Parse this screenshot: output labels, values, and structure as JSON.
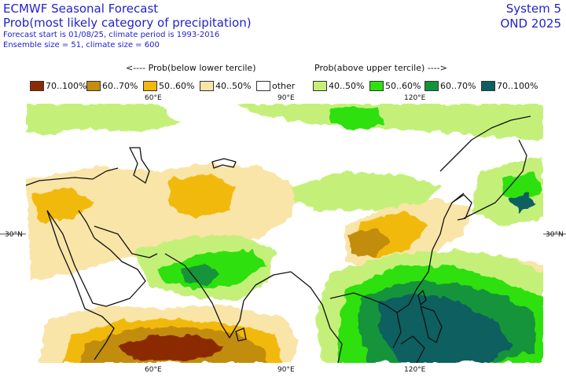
{
  "header": {
    "title": "ECMWF Seasonal Forecast",
    "subtitle": "Prob(most likely category of precipitation)",
    "info_line1": "Forecast start is 01/08/25, climate period is 1993-2016",
    "info_line2": "Ensemble size = 51, climate size = 600",
    "system": "System 5",
    "season": "OND 2025"
  },
  "legend": {
    "below_label": "<---- Prob(below lower tercile)",
    "above_label": "Prob(above upper tercile) ---->",
    "items": [
      {
        "label": "70..100%",
        "color": "#8b2c00"
      },
      {
        "label": "60..70%",
        "color": "#c28d10"
      },
      {
        "label": "50..60%",
        "color": "#f2b90c"
      },
      {
        "label": "40..50%",
        "color": "#f9e5a8"
      },
      {
        "label": "other",
        "color": "#ffffff"
      },
      {
        "label": "40..50%",
        "color": "#c4f07a"
      },
      {
        "label": "50..60%",
        "color": "#2ee00e"
      },
      {
        "label": "60..70%",
        "color": "#13943a"
      },
      {
        "label": "70..100%",
        "color": "#0b5f60"
      }
    ]
  },
  "axes": {
    "lon_labels": [
      "60°E",
      "90°E",
      "120°E"
    ],
    "lat_labels": [
      "30°N",
      "30°N"
    ]
  }
}
